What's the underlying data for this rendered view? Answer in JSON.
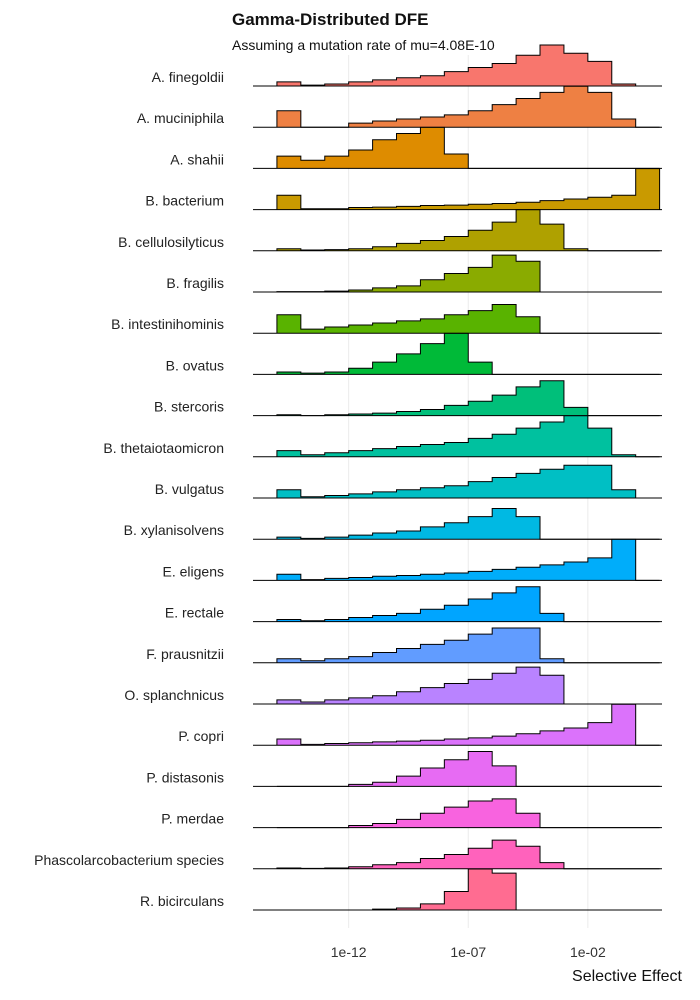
{
  "chart_data": {
    "type": "ridgeline-histogram",
    "title": "Gamma-Distributed DFE",
    "subtitle": "Assuming a mutation rate of mu=4.08E-10",
    "xlabel": "Selective Effect",
    "x_scale": "log10",
    "x_ticks": [
      {
        "value": 1e-12,
        "label": "1e-12"
      },
      {
        "value": 1e-07,
        "label": "1e-07"
      },
      {
        "value": 0.01,
        "label": "1e-02"
      }
    ],
    "bins_log10": [
      -15,
      -14,
      -13,
      -12,
      -11,
      -10,
      -9,
      -8,
      -7,
      -6,
      -5,
      -4,
      -3,
      -2,
      -1,
      0,
      1
    ],
    "series": [
      {
        "name": "A. finegoldii",
        "color": "#F8766D",
        "values": [
          0.1,
          0.02,
          0.05,
          0.1,
          0.15,
          0.2,
          0.25,
          0.35,
          0.45,
          0.55,
          0.75,
          1.0,
          0.8,
          0.6,
          0.05,
          0
        ]
      },
      {
        "name": "A. muciniphila",
        "color": "#EE8043",
        "values": [
          0.4,
          0,
          0,
          0.1,
          0.15,
          0.2,
          0.25,
          0.3,
          0.4,
          0.55,
          0.7,
          0.85,
          1.0,
          0.85,
          0.2,
          0
        ]
      },
      {
        "name": "A. shahii",
        "color": "#DE8C00",
        "values": [
          0.3,
          0.2,
          0.3,
          0.45,
          0.7,
          0.85,
          1.0,
          0.35,
          0,
          0,
          0,
          0,
          0,
          0,
          0,
          0
        ]
      },
      {
        "name": "B. bacterium",
        "color": "#C99A00",
        "values": [
          0.35,
          0.02,
          0.02,
          0.05,
          0.06,
          0.08,
          0.1,
          0.11,
          0.13,
          0.15,
          0.18,
          0.22,
          0.26,
          0.3,
          0.35,
          1.0
        ]
      },
      {
        "name": "B. cellulosilyticus",
        "color": "#AFA100",
        "values": [
          0.05,
          0.02,
          0.03,
          0.05,
          0.1,
          0.18,
          0.25,
          0.35,
          0.5,
          0.7,
          1.0,
          0.65,
          0.05,
          0,
          0,
          0
        ]
      },
      {
        "name": "B. fragilis",
        "color": "#8AAB00",
        "values": [
          0.01,
          0.01,
          0.02,
          0.05,
          0.1,
          0.15,
          0.3,
          0.45,
          0.6,
          0.9,
          0.75,
          0,
          0,
          0,
          0,
          0
        ]
      },
      {
        "name": "B. intestinihominis",
        "color": "#59B300",
        "values": [
          0.45,
          0.1,
          0.15,
          0.2,
          0.25,
          0.3,
          0.35,
          0.45,
          0.55,
          0.7,
          0.4,
          0,
          0,
          0,
          0,
          0
        ]
      },
      {
        "name": "B. ovatus",
        "color": "#00BA38",
        "values": [
          0.06,
          0.03,
          0.06,
          0.15,
          0.3,
          0.5,
          0.75,
          1.0,
          0.3,
          0,
          0,
          0,
          0,
          0,
          0,
          0
        ]
      },
      {
        "name": "B. stercoris",
        "color": "#00BF7A",
        "values": [
          0.02,
          0,
          0.02,
          0.04,
          0.06,
          0.1,
          0.15,
          0.25,
          0.35,
          0.5,
          0.7,
          0.85,
          0.2,
          0,
          0,
          0
        ]
      },
      {
        "name": "B. thetaiotaomicron",
        "color": "#00C19F",
        "values": [
          0.15,
          0.05,
          0.1,
          0.15,
          0.2,
          0.25,
          0.3,
          0.35,
          0.45,
          0.55,
          0.7,
          0.85,
          1.0,
          0.7,
          0.05,
          0
        ]
      },
      {
        "name": "B. vulgatus",
        "color": "#00BFC4",
        "values": [
          0.2,
          0.03,
          0.06,
          0.1,
          0.15,
          0.2,
          0.25,
          0.3,
          0.4,
          0.5,
          0.6,
          0.7,
          0.8,
          0.8,
          0.2,
          0
        ]
      },
      {
        "name": "B. xylanisolvens",
        "color": "#00B9E3",
        "values": [
          0.05,
          0.02,
          0.05,
          0.1,
          0.15,
          0.2,
          0.3,
          0.4,
          0.55,
          0.75,
          0.55,
          0,
          0,
          0,
          0,
          0
        ]
      },
      {
        "name": "E. eligens",
        "color": "#00ADFA",
        "values": [
          0.15,
          0.02,
          0.05,
          0.07,
          0.1,
          0.12,
          0.15,
          0.18,
          0.22,
          0.27,
          0.32,
          0.38,
          0.45,
          0.55,
          1.0,
          0
        ]
      },
      {
        "name": "E. rectale",
        "color": "#00A5FF",
        "values": [
          0.05,
          0.02,
          0.05,
          0.1,
          0.15,
          0.2,
          0.3,
          0.4,
          0.55,
          0.7,
          0.85,
          0.2,
          0,
          0,
          0,
          0
        ]
      },
      {
        "name": "F. prausnitzii",
        "color": "#619CFF",
        "values": [
          0.1,
          0.05,
          0.1,
          0.15,
          0.25,
          0.35,
          0.45,
          0.55,
          0.7,
          0.85,
          0.85,
          0.1,
          0,
          0,
          0,
          0
        ]
      },
      {
        "name": "O. splanchnicus",
        "color": "#B983FF",
        "values": [
          0.1,
          0.05,
          0.1,
          0.15,
          0.2,
          0.3,
          0.4,
          0.5,
          0.6,
          0.75,
          0.9,
          0.7,
          0,
          0,
          0,
          0
        ]
      },
      {
        "name": "P. copri",
        "color": "#DB72FB",
        "values": [
          0.15,
          0.02,
          0.04,
          0.06,
          0.08,
          0.1,
          0.12,
          0.15,
          0.18,
          0.22,
          0.28,
          0.35,
          0.42,
          0.55,
          1.0,
          0
        ]
      },
      {
        "name": "P. distasonis",
        "color": "#E76BF3",
        "values": [
          0,
          0,
          0,
          0.05,
          0.1,
          0.25,
          0.45,
          0.65,
          0.85,
          0.5,
          0,
          0,
          0,
          0,
          0,
          0
        ]
      },
      {
        "name": "P. merdae",
        "color": "#F863DF",
        "values": [
          0,
          0,
          0,
          0.05,
          0.1,
          0.2,
          0.35,
          0.5,
          0.65,
          0.7,
          0.35,
          0,
          0,
          0,
          0,
          0
        ]
      },
      {
        "name": "Phascolarcobacterium species",
        "color": "#FF62BC",
        "values": [
          0.02,
          0.01,
          0.02,
          0.05,
          0.1,
          0.15,
          0.25,
          0.35,
          0.5,
          0.7,
          0.55,
          0.15,
          0,
          0,
          0,
          0
        ]
      },
      {
        "name": "R. bicirculans",
        "color": "#FF6C91",
        "values": [
          0,
          0,
          0,
          0,
          0.02,
          0.05,
          0.15,
          0.45,
          1.0,
          0.9,
          0,
          0,
          0,
          0,
          0,
          0
        ]
      }
    ]
  }
}
